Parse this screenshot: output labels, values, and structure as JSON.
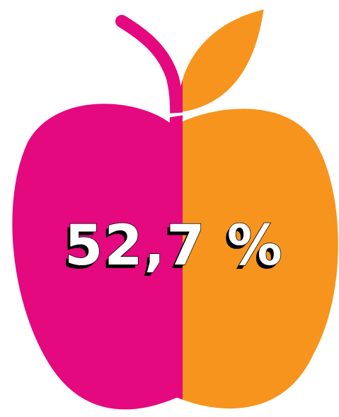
{
  "text": "52,7 %"
}
